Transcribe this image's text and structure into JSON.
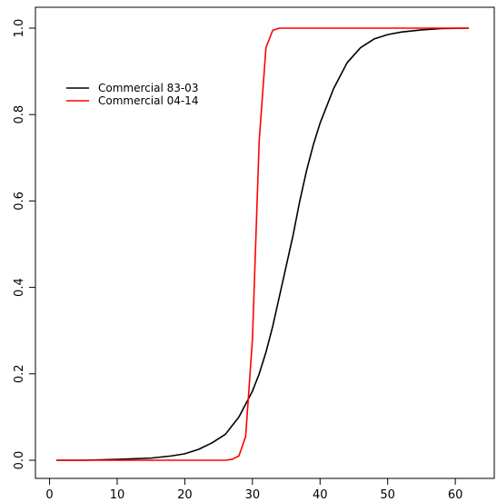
{
  "chart_data": {
    "type": "line",
    "title": "",
    "xlabel": "",
    "ylabel": "",
    "xlim": [
      1,
      62
    ],
    "ylim": [
      0,
      1
    ],
    "x_ticks": [
      0,
      10,
      20,
      30,
      40,
      50,
      60
    ],
    "y_ticks": [
      0.0,
      0.2,
      0.4,
      0.6,
      0.8,
      1.0
    ],
    "x_tick_labels": [
      "0",
      "10",
      "20",
      "30",
      "40",
      "50",
      "60"
    ],
    "y_tick_labels": [
      "0.0",
      "0.2",
      "0.4",
      "0.6",
      "0.8",
      "1.0"
    ],
    "grid": false,
    "legend_position": "top-left",
    "series": [
      {
        "name": "Commercial 83-03",
        "color": "#000000",
        "x": [
          1,
          5,
          10,
          15,
          18,
          20,
          22,
          24,
          26,
          28,
          29,
          30,
          31,
          32,
          33,
          34,
          35,
          36,
          37,
          38,
          39,
          40,
          42,
          44,
          46,
          48,
          50,
          52,
          55,
          58,
          62
        ],
        "y": [
          0.0,
          0.0,
          0.002,
          0.005,
          0.01,
          0.015,
          0.025,
          0.04,
          0.06,
          0.1,
          0.13,
          0.16,
          0.2,
          0.25,
          0.31,
          0.38,
          0.45,
          0.52,
          0.6,
          0.67,
          0.73,
          0.78,
          0.86,
          0.92,
          0.955,
          0.975,
          0.985,
          0.991,
          0.996,
          0.999,
          1.0
        ]
      },
      {
        "name": "Commercial 04-14",
        "color": "#ff0000",
        "x": [
          1,
          10,
          20,
          26,
          27,
          28,
          29,
          30,
          31,
          32,
          33,
          34,
          35,
          40,
          50,
          62
        ],
        "y": [
          0.0,
          0.0,
          0.0,
          0.0,
          0.002,
          0.01,
          0.055,
          0.28,
          0.74,
          0.955,
          0.995,
          1.0,
          1.0,
          1.0,
          1.0,
          1.0
        ]
      }
    ]
  }
}
